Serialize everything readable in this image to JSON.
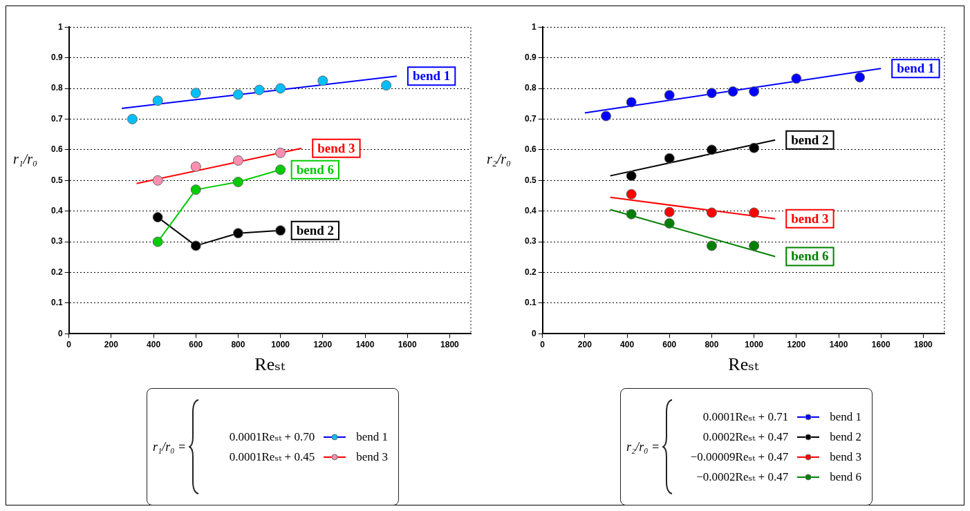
{
  "chart_data": [
    {
      "type": "scatter",
      "xlabel": "Reₛₜ",
      "ylabel": "r₁/r₀",
      "xlim": [
        0,
        1900
      ],
      "xticks": [
        0,
        200,
        400,
        600,
        800,
        1000,
        1200,
        1400,
        1600,
        1800
      ],
      "ylim": [
        0,
        1
      ],
      "yticks": [
        0,
        0.1,
        0.2,
        0.3,
        0.4,
        0.5,
        0.6,
        0.7,
        0.8,
        0.9,
        1
      ],
      "grid": "y",
      "marker": "circle",
      "legend": "bottom",
      "annotations": [
        "r₁/r₀ =",
        "0.0001Reₛₜ + 0.70",
        "0.0001Reₛₜ + 0.45"
      ],
      "series": [
        {
          "name": "bend 1",
          "color": "#00bfff",
          "x": [
            300,
            420,
            600,
            800,
            900,
            1000,
            1200,
            1500
          ],
          "values": [
            0.7,
            0.76,
            0.785,
            0.78,
            0.795,
            0.8,
            0.825,
            0.81
          ]
        },
        {
          "type": "line",
          "marker": "none",
          "color": "#0000ff",
          "x": [
            250,
            1550
          ],
          "values": [
            0.735,
            0.84
          ]
        },
        {
          "name": "bend 3",
          "color": "#ff8fb0",
          "x": [
            420,
            600,
            800,
            1000
          ],
          "values": [
            0.5,
            0.545,
            0.565,
            0.59
          ]
        },
        {
          "type": "line",
          "marker": "none",
          "color": "#ff0000",
          "x": [
            320,
            1100
          ],
          "values": [
            0.49,
            0.605
          ]
        },
        {
          "name": "bend 6",
          "type": "line",
          "color": "#00cc00",
          "x": [
            420,
            600,
            800,
            1000
          ],
          "values": [
            0.3,
            0.47,
            0.495,
            0.535
          ]
        },
        {
          "name": "bend 2",
          "type": "line",
          "color": "#000000",
          "x": [
            420,
            600,
            800,
            1000
          ],
          "values": [
            0.38,
            0.287,
            0.328,
            0.337
          ]
        }
      ]
    },
    {
      "type": "scatter",
      "xlabel": "Reₛₜ",
      "ylabel": "r₂/r₀",
      "xlim": [
        0,
        1900
      ],
      "xticks": [
        0,
        200,
        400,
        600,
        800,
        1000,
        1200,
        1400,
        1600,
        1800
      ],
      "ylim": [
        0,
        1
      ],
      "yticks": [
        0,
        0.1,
        0.2,
        0.3,
        0.4,
        0.5,
        0.6,
        0.7,
        0.8,
        0.9,
        1
      ],
      "grid": "y",
      "marker": "circle",
      "legend": "bottom",
      "annotations": [
        "r₂/r₀ =",
        "0.0001Reₛₜ + 0.71",
        "0.0002Reₛₜ + 0.47",
        "−0.00009Reₛₜ + 0.47",
        "−0.0002Reₛₜ + 0.47"
      ],
      "series": [
        {
          "name": "bend 1",
          "color": "#0000ff",
          "x": [
            300,
            420,
            600,
            800,
            900,
            1000,
            1200,
            1500
          ],
          "values": [
            0.71,
            0.755,
            0.778,
            0.785,
            0.79,
            0.79,
            0.832,
            0.836
          ]
        },
        {
          "type": "line",
          "marker": "none",
          "color": "#0000ff",
          "x": [
            200,
            1600
          ],
          "values": [
            0.72,
            0.865
          ]
        },
        {
          "name": "bend 2",
          "color": "#000000",
          "x": [
            420,
            600,
            800,
            1000
          ],
          "values": [
            0.515,
            0.572,
            0.6,
            0.606
          ]
        },
        {
          "type": "line",
          "marker": "none",
          "color": "#000000",
          "x": [
            320,
            1100
          ],
          "values": [
            0.515,
            0.632
          ]
        },
        {
          "name": "bend 3",
          "color": "#ff0000",
          "x": [
            420,
            600,
            800,
            1000
          ],
          "values": [
            0.455,
            0.397,
            0.395,
            0.395
          ]
        },
        {
          "type": "line",
          "marker": "none",
          "color": "#ff0000",
          "x": [
            320,
            1100
          ],
          "values": [
            0.445,
            0.375
          ]
        },
        {
          "name": "bend 6",
          "color": "#008000",
          "x": [
            420,
            600,
            800,
            1000
          ],
          "values": [
            0.39,
            0.36,
            0.287,
            0.287
          ]
        },
        {
          "type": "line",
          "marker": "none",
          "color": "#008000",
          "x": [
            320,
            1100
          ],
          "values": [
            0.405,
            0.252
          ]
        }
      ]
    }
  ]
}
